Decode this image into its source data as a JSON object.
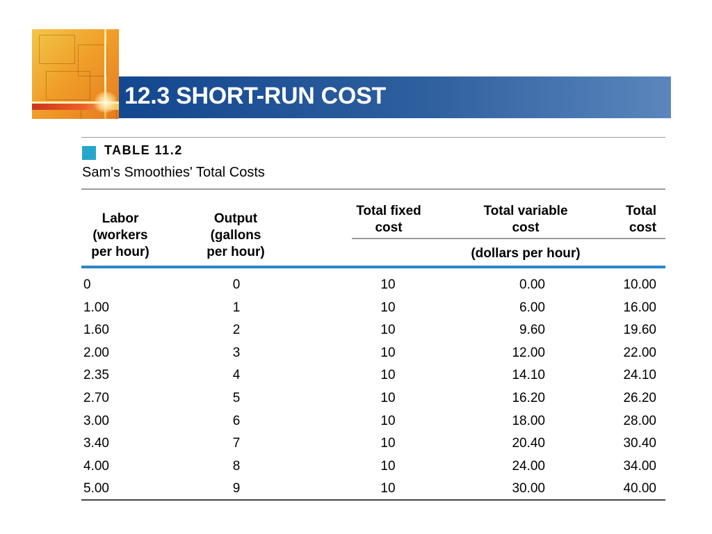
{
  "slide": {
    "title": "12.3 SHORT-RUN COST"
  },
  "table": {
    "label": "TABLE 11.2",
    "caption": "Sam's Smoothies' Total Costs",
    "headers": {
      "labor": [
        "Labor",
        "(workers",
        "per hour)"
      ],
      "output": [
        "Output",
        "(gallons",
        "per hour)"
      ],
      "fixed": [
        "Total fixed",
        "cost"
      ],
      "variable": [
        "Total variable",
        "cost"
      ],
      "total": [
        "Total",
        "cost"
      ],
      "unit": "(dollars per hour)"
    },
    "rows": [
      [
        "0",
        "0",
        "10",
        "0.00",
        "10.00"
      ],
      [
        "1.00",
        "1",
        "10",
        "6.00",
        "16.00"
      ],
      [
        "1.60",
        "2",
        "10",
        "9.60",
        "19.60"
      ],
      [
        "2.00",
        "3",
        "10",
        "12.00",
        "22.00"
      ],
      [
        "2.35",
        "4",
        "10",
        "14.10",
        "24.10"
      ],
      [
        "2.70",
        "5",
        "10",
        "16.20",
        "26.20"
      ],
      [
        "3.00",
        "6",
        "10",
        "18.00",
        "28.00"
      ],
      [
        "3.40",
        "7",
        "10",
        "20.40",
        "30.40"
      ],
      [
        "4.00",
        "8",
        "10",
        "24.00",
        "34.00"
      ],
      [
        "5.00",
        "9",
        "10",
        "30.00",
        "40.00"
      ]
    ]
  },
  "colors": {
    "title_bar": "#2e5f9e",
    "accent_blue": "#2a86c8",
    "tag_square": "#27a6cc"
  }
}
